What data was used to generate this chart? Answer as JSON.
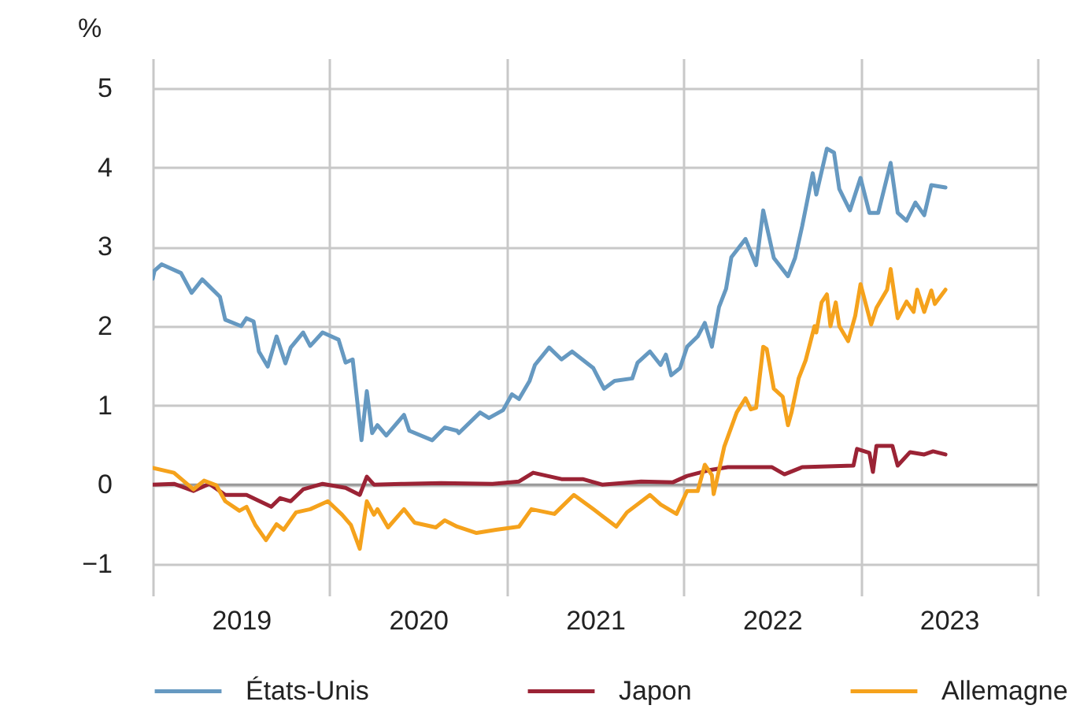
{
  "chart_data": {
    "type": "line",
    "ylabel": "%",
    "xlim": [
      2019,
      2024
    ],
    "ylim": [
      -1.4,
      5.38
    ],
    "xticks": [
      {
        "value": 2019,
        "label": null
      },
      {
        "value": 2019.5,
        "label": "2019"
      },
      {
        "value": 2020,
        "label": null
      },
      {
        "value": 2020.5,
        "label": "2020"
      },
      {
        "value": 2021,
        "label": null
      },
      {
        "value": 2021.5,
        "label": "2021"
      },
      {
        "value": 2022,
        "label": null
      },
      {
        "value": 2022.5,
        "label": "2022"
      },
      {
        "value": 2023,
        "label": null
      },
      {
        "value": 2023.5,
        "label": "2023"
      },
      {
        "value": 2024,
        "label": null
      }
    ],
    "yticks": [
      {
        "value": -1,
        "label": "−1"
      },
      0,
      1,
      2,
      3,
      4,
      5
    ],
    "grid": true,
    "legend": "bottom",
    "ref_lines": [
      {
        "axis": "y",
        "value": 0,
        "color": "#999999"
      }
    ],
    "series": [
      {
        "name": "États-Unis",
        "color": "#6699c1",
        "x": [
          2019.0,
          2019.01,
          2019.05,
          2019.16,
          2019.22,
          2019.28,
          2019.38,
          2019.41,
          2019.5,
          2019.53,
          2019.57,
          2019.6,
          2019.65,
          2019.7,
          2019.75,
          2019.78,
          2019.85,
          2019.89,
          2019.96,
          2020.05,
          2020.09,
          2020.13,
          2020.18,
          2020.21,
          2020.24,
          2020.27,
          2020.32,
          2020.42,
          2020.45,
          2020.58,
          2020.65,
          2020.72,
          2020.73,
          2020.85,
          2020.9,
          2020.98,
          2021.03,
          2021.07,
          2021.13,
          2021.16,
          2021.24,
          2021.31,
          2021.37,
          2021.49,
          2021.55,
          2021.61,
          2021.71,
          2021.74,
          2021.81,
          2021.87,
          2021.9,
          2021.93,
          2021.98,
          2022.02,
          2022.08,
          2022.12,
          2022.16,
          2022.2,
          2022.24,
          2022.27,
          2022.35,
          2022.41,
          2022.45,
          2022.51,
          2022.59,
          2022.63,
          2022.67,
          2022.73,
          2022.75,
          2022.81,
          2022.85,
          2022.88,
          2022.94,
          2023.0,
          2023.05,
          2023.1,
          2023.17,
          2023.21,
          2023.26,
          2023.31,
          2023.36,
          2023.4,
          2023.48
        ],
        "values": [
          2.6,
          2.7,
          2.78,
          2.67,
          2.42,
          2.59,
          2.37,
          2.08,
          2.0,
          2.1,
          2.06,
          1.68,
          1.49,
          1.87,
          1.53,
          1.73,
          1.92,
          1.75,
          1.92,
          1.83,
          1.54,
          1.58,
          0.56,
          1.18,
          0.65,
          0.75,
          0.62,
          0.88,
          0.68,
          0.56,
          0.72,
          0.68,
          0.65,
          0.91,
          0.84,
          0.94,
          1.14,
          1.08,
          1.31,
          1.51,
          1.73,
          1.58,
          1.68,
          1.47,
          1.21,
          1.31,
          1.34,
          1.54,
          1.68,
          1.51,
          1.64,
          1.38,
          1.47,
          1.74,
          1.87,
          2.04,
          1.74,
          2.24,
          2.47,
          2.87,
          3.1,
          2.77,
          3.46,
          2.86,
          2.63,
          2.86,
          3.26,
          3.93,
          3.66,
          4.24,
          4.19,
          3.73,
          3.46,
          3.87,
          3.43,
          3.43,
          4.06,
          3.43,
          3.33,
          3.56,
          3.4,
          3.78,
          3.75
        ]
      },
      {
        "name": "Japon",
        "color": "#9b2335",
        "x": [
          2019.0,
          2019.12,
          2019.23,
          2019.32,
          2019.41,
          2019.53,
          2019.67,
          2019.72,
          2019.78,
          2019.85,
          2019.96,
          2020.09,
          2020.17,
          2020.21,
          2020.25,
          2020.42,
          2020.63,
          2020.92,
          2021.07,
          2021.15,
          2021.31,
          2021.43,
          2021.54,
          2021.76,
          2021.94,
          2022.02,
          2022.14,
          2022.25,
          2022.4,
          2022.5,
          2022.57,
          2022.67,
          2022.96,
          2022.98,
          2023.05,
          2023.07,
          2023.09,
          2023.18,
          2023.21,
          2023.28,
          2023.36,
          2023.41,
          2023.48
        ],
        "values": [
          0.0,
          0.01,
          -0.08,
          0.01,
          -0.13,
          -0.13,
          -0.28,
          -0.17,
          -0.21,
          -0.06,
          0.01,
          -0.04,
          -0.13,
          0.1,
          0.0,
          0.01,
          0.02,
          0.01,
          0.04,
          0.15,
          0.07,
          0.07,
          0.0,
          0.04,
          0.03,
          0.11,
          0.18,
          0.22,
          0.22,
          0.22,
          0.13,
          0.22,
          0.24,
          0.45,
          0.4,
          0.16,
          0.49,
          0.49,
          0.24,
          0.41,
          0.38,
          0.42,
          0.38
        ]
      },
      {
        "name": "Allemagne",
        "color": "#f5a21c",
        "x": [
          2019.0,
          2019.12,
          2019.23,
          2019.29,
          2019.36,
          2019.41,
          2019.49,
          2019.53,
          2019.58,
          2019.64,
          2019.7,
          2019.74,
          2019.81,
          2019.89,
          2019.99,
          2020.07,
          2020.12,
          2020.17,
          2020.21,
          2020.25,
          2020.27,
          2020.33,
          2020.42,
          2020.48,
          2020.6,
          2020.65,
          2020.72,
          2020.83,
          2020.94,
          2021.07,
          2021.14,
          2021.27,
          2021.38,
          2021.49,
          2021.62,
          2021.68,
          2021.81,
          2021.87,
          2021.96,
          2022.02,
          2022.08,
          2022.12,
          2022.16,
          2022.17,
          2022.23,
          2022.3,
          2022.35,
          2022.38,
          2022.41,
          2022.45,
          2022.47,
          2022.51,
          2022.56,
          2022.59,
          2022.61,
          2022.65,
          2022.69,
          2022.74,
          2022.75,
          2022.78,
          2022.81,
          2022.83,
          2022.86,
          2022.88,
          2022.93,
          2022.97,
          2023.0,
          2023.06,
          2023.09,
          2023.15,
          2023.17,
          2023.21,
          2023.26,
          2023.3,
          2023.32,
          2023.36,
          2023.4,
          2023.42,
          2023.48
        ],
        "values": [
          0.21,
          0.15,
          -0.06,
          0.05,
          -0.01,
          -0.21,
          -0.33,
          -0.28,
          -0.51,
          -0.7,
          -0.5,
          -0.57,
          -0.35,
          -0.31,
          -0.21,
          -0.38,
          -0.51,
          -0.81,
          -0.21,
          -0.38,
          -0.31,
          -0.54,
          -0.31,
          -0.48,
          -0.54,
          -0.45,
          -0.53,
          -0.61,
          -0.57,
          -0.53,
          -0.31,
          -0.37,
          -0.13,
          -0.31,
          -0.53,
          -0.35,
          -0.13,
          -0.25,
          -0.37,
          -0.08,
          -0.08,
          0.25,
          0.12,
          -0.12,
          0.48,
          0.91,
          1.09,
          0.95,
          0.97,
          1.74,
          1.71,
          1.21,
          1.11,
          0.75,
          0.91,
          1.34,
          1.57,
          2.0,
          1.92,
          2.3,
          2.4,
          2.0,
          2.3,
          2.0,
          1.81,
          2.13,
          2.53,
          2.02,
          2.23,
          2.46,
          2.72,
          2.1,
          2.31,
          2.18,
          2.46,
          2.18,
          2.45,
          2.28,
          2.46
        ]
      }
    ]
  }
}
